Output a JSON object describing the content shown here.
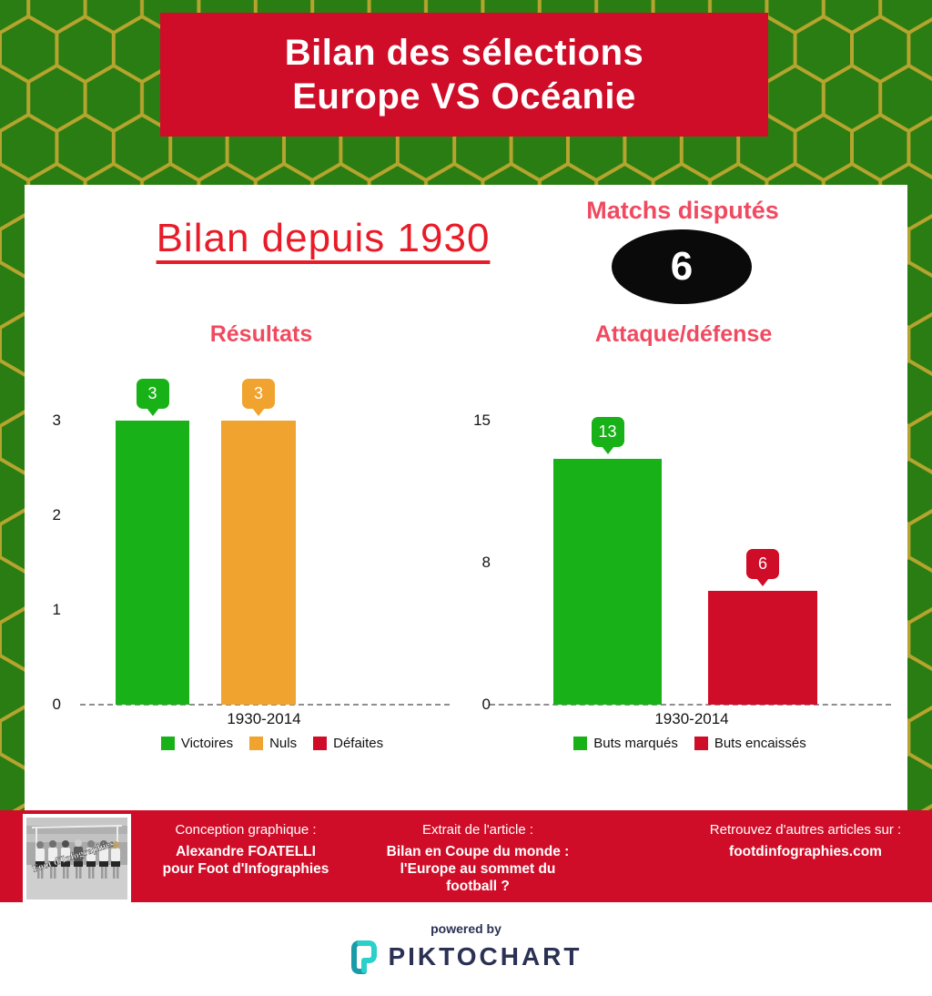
{
  "header": {
    "title_line1": "Bilan des sélections",
    "title_line2": "Europe VS Océanie"
  },
  "panel": {
    "main_title": "Bilan depuis 1930",
    "matches_label": "Matchs disputés",
    "matches_value": "6"
  },
  "chart_data": [
    {
      "type": "bar",
      "title": "Résultats",
      "categories": [
        "1930-2014"
      ],
      "series": [
        {
          "name": "Victoires",
          "values": [
            3
          ],
          "color": "#18b118"
        },
        {
          "name": "Nuls",
          "values": [
            3
          ],
          "color": "#f0a32e"
        },
        {
          "name": "Défaites",
          "values": [
            0
          ],
          "color": "#d00d28"
        }
      ],
      "xlabel": "1930-2014",
      "ylim": [
        0,
        3
      ],
      "yticks": [
        {
          "label": "3",
          "v": 3
        },
        {
          "label": "2",
          "v": 2
        },
        {
          "label": "1",
          "v": 1
        },
        {
          "label": "0",
          "v": 0
        }
      ],
      "grid": "dashed-zero-line-only",
      "legend_position": "bottom"
    },
    {
      "type": "bar",
      "title": "Attaque/défense",
      "categories": [
        "1930-2014"
      ],
      "series": [
        {
          "name": "Buts marqués",
          "values": [
            13
          ],
          "color": "#18b118"
        },
        {
          "name": "Buts encaissés",
          "values": [
            6
          ],
          "color": "#d00d28"
        }
      ],
      "xlabel": "1930-2014",
      "ylim": [
        0,
        15
      ],
      "yticks": [
        {
          "label": "15",
          "v": 15
        },
        {
          "label": "8",
          "v": 7.5
        },
        {
          "label": "0",
          "v": 0
        }
      ],
      "grid": "dashed-zero-line-only",
      "legend_position": "bottom"
    }
  ],
  "footer": {
    "photo_watermark": "Foot d'Infographies",
    "col1_label": "Conception graphique :",
    "col1_line1": "Alexandre FOATELLI",
    "col1_line2": "pour Foot d'Infographies",
    "col2_label": "Extrait de l'article :",
    "col2_line1": "Bilan en Coupe du monde :",
    "col2_line2": "l'Europe au sommet du",
    "col2_line3": "football ?",
    "col3_label": "Retrouvez d'autres articles sur :",
    "col3_line1": "footdinfographies.com"
  },
  "powered_by": {
    "label": "powered by",
    "brand": "PIKTOCHART"
  },
  "colors": {
    "background_green": "#2a7d12",
    "hex_border": "#b5a42e",
    "banner_red": "#d00d28",
    "title_red": "#e81c28",
    "accent_pink": "#f04a60",
    "bar_green": "#18b118",
    "bar_orange": "#f0a32e",
    "bar_red": "#d00d28",
    "oval_black": "#0a0a0a",
    "brand_navy": "#2b3154",
    "brand_teal": "#25c3c5"
  }
}
